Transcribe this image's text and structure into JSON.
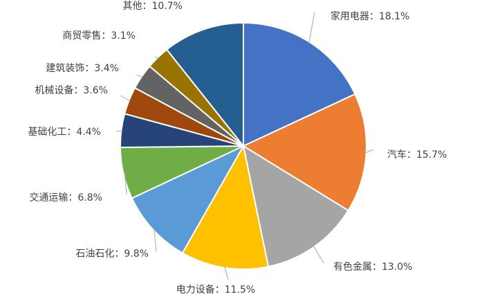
{
  "chart_data": {
    "type": "pie",
    "title": "",
    "start": "top",
    "direction": "clockwise",
    "slices": [
      {
        "label": "家用电器：18.1%",
        "name": "家用电器",
        "value": 18.1,
        "color": "#4472c4"
      },
      {
        "label": "汽车：15.7%",
        "name": "汽车",
        "value": 15.7,
        "color": "#ed7d31"
      },
      {
        "label": "有色金属：13.0%",
        "name": "有色金属",
        "value": 13.0,
        "color": "#a5a5a5"
      },
      {
        "label": "电力设备：11.5%",
        "name": "电力设备",
        "value": 11.5,
        "color": "#ffc000"
      },
      {
        "label": "石油石化：9.8%",
        "name": "石油石化",
        "value": 9.8,
        "color": "#5b9bd5"
      },
      {
        "label": "交通运输：6.8%",
        "name": "交通运输",
        "value": 6.8,
        "color": "#70ad47"
      },
      {
        "label": "基础化工：4.4%",
        "name": "基础化工",
        "value": 4.4,
        "color": "#264478"
      },
      {
        "label": "机械设备：3.6%",
        "name": "机械设备",
        "value": 3.6,
        "color": "#9e480e"
      },
      {
        "label": "建筑装饰：3.4%",
        "name": "建筑装饰",
        "value": 3.4,
        "color": "#636363"
      },
      {
        "label": "商贸零售：3.1%",
        "name": "商贸零售",
        "value": 3.1,
        "color": "#997300"
      },
      {
        "label": "其他：10.7%",
        "name": "其他",
        "value": 10.7,
        "color": "#255e91"
      }
    ]
  }
}
